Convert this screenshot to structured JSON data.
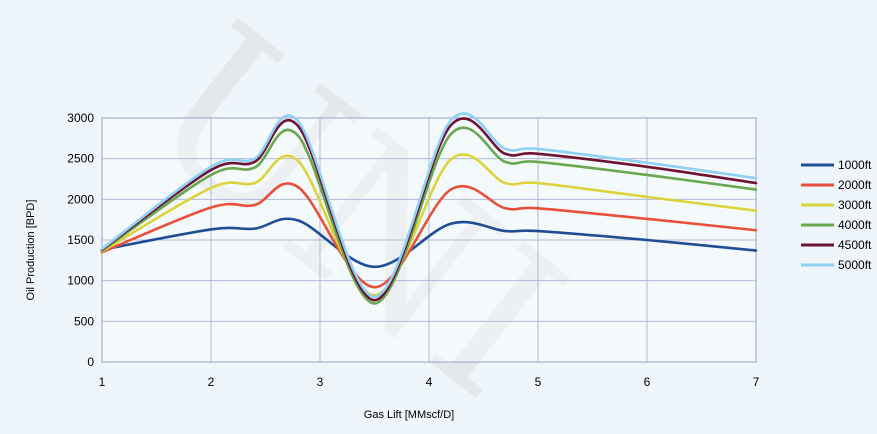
{
  "chart_data": {
    "type": "line",
    "title": "",
    "xlabel": "Gas Lift [MMscf/D]",
    "ylabel": "Oil Production [BPD]",
    "xlim": [
      1,
      7
    ],
    "ylim": [
      0,
      3000
    ],
    "xticks": [
      1,
      2,
      3,
      4,
      5,
      6,
      7
    ],
    "yticks": [
      0,
      500,
      1000,
      1500,
      2000,
      2500,
      3000
    ],
    "grid": true,
    "legend_position": "right",
    "smooth": true,
    "x": [
      1,
      2,
      2.4,
      2.8,
      3.5,
      4.2,
      4.7,
      5,
      6,
      7
    ],
    "series": [
      {
        "name": "1000ft",
        "color": "#1f4e96",
        "values": [
          1380,
          1630,
          1640,
          1740,
          1170,
          1700,
          1610,
          1610,
          1500,
          1370
        ]
      },
      {
        "name": "2000ft",
        "color": "#e8503a",
        "values": [
          1350,
          1900,
          1930,
          2150,
          920,
          2120,
          1890,
          1890,
          1760,
          1620
        ]
      },
      {
        "name": "3000ft",
        "color": "#dcd43a",
        "values": [
          1360,
          2140,
          2200,
          2470,
          820,
          2490,
          2200,
          2200,
          2030,
          1860
        ]
      },
      {
        "name": "4000ft",
        "color": "#6aa84f",
        "values": [
          1370,
          2300,
          2390,
          2780,
          720,
          2800,
          2460,
          2460,
          2300,
          2120
        ]
      },
      {
        "name": "4500ft",
        "color": "#6e1333",
        "values": [
          1380,
          2360,
          2460,
          2900,
          760,
          2910,
          2560,
          2560,
          2400,
          2200
        ]
      },
      {
        "name": "5000ft",
        "color": "#8fd0f7",
        "values": [
          1390,
          2400,
          2500,
          2960,
          800,
          2970,
          2620,
          2620,
          2450,
          2260
        ]
      }
    ]
  },
  "watermark": {
    "text": "UNI"
  }
}
